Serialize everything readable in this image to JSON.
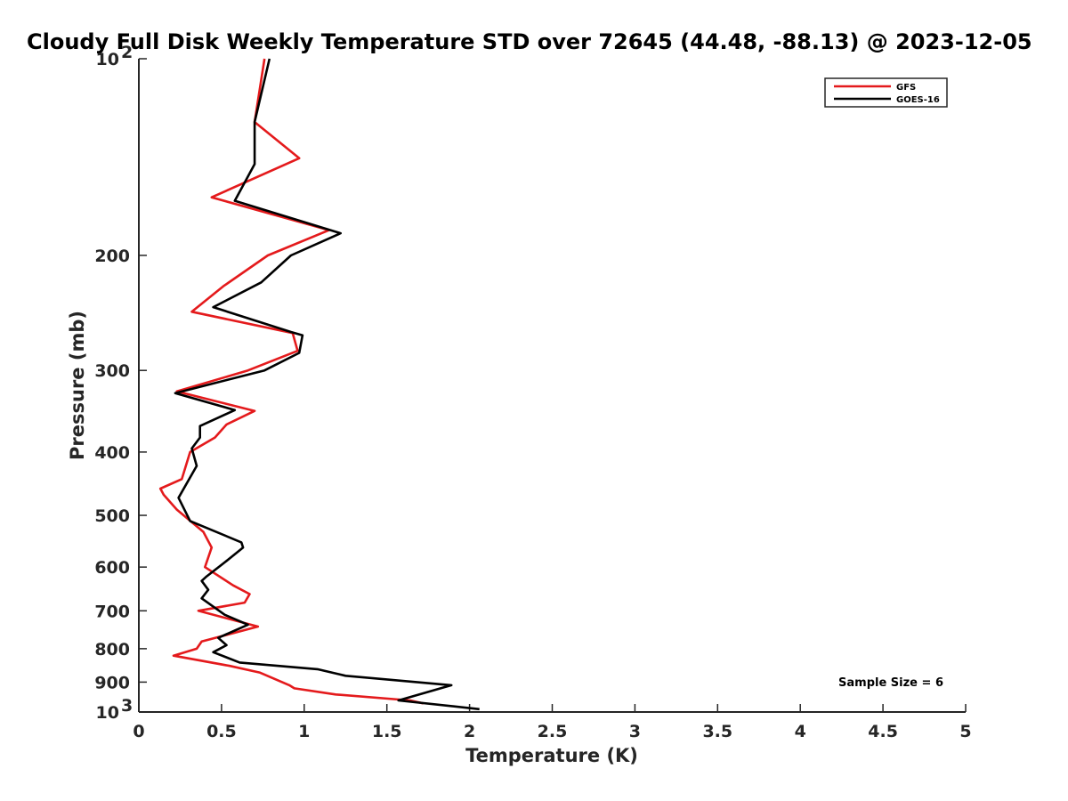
{
  "chart_data": {
    "type": "line",
    "title": "Cloudy Full Disk Weekly Temperature STD over 72645 (44.48, -88.13) @ 2023-12-05",
    "xlabel": "Temperature (K)",
    "ylabel": "Pressure (mb)",
    "xlim": [
      0,
      5
    ],
    "ylim": [
      100,
      1000
    ],
    "y_scale": "log",
    "y_reversed": true,
    "x_ticks": [
      "0",
      "0.5",
      "1",
      "1.5",
      "2",
      "2.5",
      "3",
      "3.5",
      "4",
      "4.5",
      "5"
    ],
    "y_ticks": [
      {
        "value": 100,
        "label": "10",
        "sup": "2"
      },
      {
        "value": 200,
        "label": "200",
        "sup": ""
      },
      {
        "value": 300,
        "label": "300",
        "sup": ""
      },
      {
        "value": 400,
        "label": "400",
        "sup": ""
      },
      {
        "value": 500,
        "label": "500",
        "sup": ""
      },
      {
        "value": 600,
        "label": "600",
        "sup": ""
      },
      {
        "value": 700,
        "label": "700",
        "sup": ""
      },
      {
        "value": 800,
        "label": "800",
        "sup": ""
      },
      {
        "value": 900,
        "label": "900",
        "sup": ""
      },
      {
        "value": 1000,
        "label": "10",
        "sup": "3"
      }
    ],
    "grid": false,
    "legend_position": "top-right",
    "annotation": "Sample Size = 6",
    "series": [
      {
        "name": "GFS",
        "color": "#e41a1c",
        "points": [
          [
            0.76,
            100
          ],
          [
            0.7,
            125
          ],
          [
            0.97,
            142
          ],
          [
            0.44,
            163
          ],
          [
            1.15,
            183
          ],
          [
            0.78,
            200
          ],
          [
            0.51,
            223
          ],
          [
            0.32,
            244
          ],
          [
            0.93,
            263
          ],
          [
            0.96,
            280
          ],
          [
            0.66,
            300
          ],
          [
            0.23,
            323
          ],
          [
            0.7,
            346
          ],
          [
            0.53,
            363
          ],
          [
            0.46,
            380
          ],
          [
            0.31,
            400
          ],
          [
            0.26,
            440
          ],
          [
            0.13,
            455
          ],
          [
            0.15,
            465
          ],
          [
            0.23,
            490
          ],
          [
            0.39,
            530
          ],
          [
            0.44,
            560
          ],
          [
            0.4,
            600
          ],
          [
            0.57,
            640
          ],
          [
            0.67,
            660
          ],
          [
            0.64,
            680
          ],
          [
            0.36,
            700
          ],
          [
            0.72,
            740
          ],
          [
            0.38,
            780
          ],
          [
            0.35,
            800
          ],
          [
            0.21,
            820
          ],
          [
            0.55,
            850
          ],
          [
            0.73,
            870
          ],
          [
            0.91,
            910
          ],
          [
            0.94,
            920
          ],
          [
            1.19,
            940
          ],
          [
            1.64,
            960
          ],
          [
            1.72,
            970
          ]
        ]
      },
      {
        "name": "GOES-16",
        "color": "#000000",
        "points": [
          [
            0.79,
            100
          ],
          [
            0.7,
            125
          ],
          [
            0.7,
            145
          ],
          [
            0.58,
            165
          ],
          [
            1.22,
            185
          ],
          [
            0.92,
            200
          ],
          [
            0.74,
            220
          ],
          [
            0.45,
            240
          ],
          [
            0.92,
            262
          ],
          [
            0.99,
            265
          ],
          [
            0.97,
            282
          ],
          [
            0.76,
            300
          ],
          [
            0.22,
            325
          ],
          [
            0.58,
            345
          ],
          [
            0.37,
            365
          ],
          [
            0.37,
            380
          ],
          [
            0.32,
            395
          ],
          [
            0.35,
            420
          ],
          [
            0.24,
            470
          ],
          [
            0.31,
            510
          ],
          [
            0.62,
            550
          ],
          [
            0.63,
            560
          ],
          [
            0.52,
            590
          ],
          [
            0.41,
            620
          ],
          [
            0.38,
            630
          ],
          [
            0.42,
            650
          ],
          [
            0.38,
            670
          ],
          [
            0.52,
            710
          ],
          [
            0.66,
            735
          ],
          [
            0.48,
            770
          ],
          [
            0.53,
            790
          ],
          [
            0.45,
            810
          ],
          [
            0.61,
            840
          ],
          [
            1.08,
            860
          ],
          [
            1.25,
            880
          ],
          [
            1.89,
            910
          ],
          [
            1.57,
            960
          ],
          [
            2.06,
            990
          ]
        ]
      }
    ]
  }
}
